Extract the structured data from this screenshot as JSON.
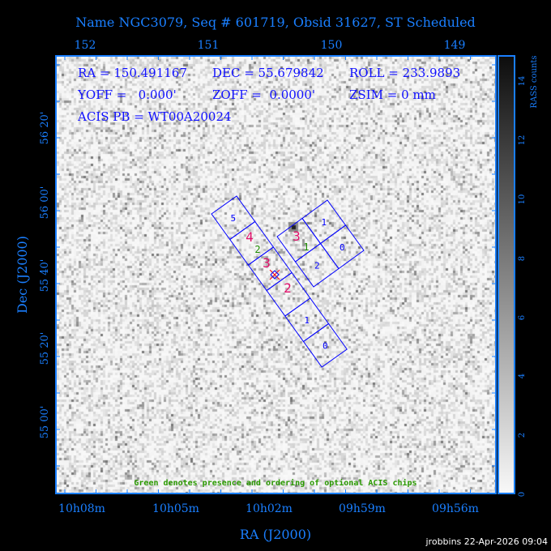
{
  "title": "Name NGC3079, Seq # 601719, Obsid 31627, ST Scheduled",
  "info": {
    "ra": "RA = 150.491167",
    "dec": "DEC = 55.679842",
    "roll": "ROLL = 233.9893",
    "yoff": "YOFF =   0.000'",
    "zoff": "ZOFF =  0.0000'",
    "zsim": "ZSIM = 0 mm",
    "acis_pb": "ACIS PB = WT00A20024"
  },
  "note": "Green denotes presence and ordering of optional ACIS chips",
  "footer": "jrobbins 22-Apr-2026 09:04",
  "chart_data": {
    "type": "heatmap",
    "title": "Name NGC3079, Seq # 601719, Obsid 31627, ST Scheduled",
    "xlabel": "RA (J2000)",
    "ylabel": "Dec (J2000)",
    "x_ticks": [
      "10h08m",
      "10h05m",
      "10h02m",
      "09h59m",
      "09h56m"
    ],
    "top_ticks": [
      "152",
      "151",
      "150",
      "149"
    ],
    "y_ticks": [
      "55 00'",
      "55 20'",
      "55 40'",
      "56 00'",
      "56 20'"
    ],
    "colorbar": {
      "label": "RASS counts",
      "ticks": [
        "0",
        "2",
        "4",
        "6",
        "8",
        "10",
        "12",
        "14"
      ],
      "range": [
        0,
        14.9
      ]
    },
    "chips": {
      "acis_s": [
        "5",
        "4",
        "3",
        "2",
        "1",
        "0"
      ],
      "acis_i": [
        "3",
        "1",
        "2",
        "0"
      ]
    },
    "required_labels": [
      "4",
      "3",
      "2",
      "3"
    ],
    "optional_labels": [
      "2",
      "1"
    ],
    "colors": {
      "axis": "#1a7fff",
      "chip": "#0000ff",
      "required": "#e0106a",
      "optional": "#1e8c00"
    }
  }
}
